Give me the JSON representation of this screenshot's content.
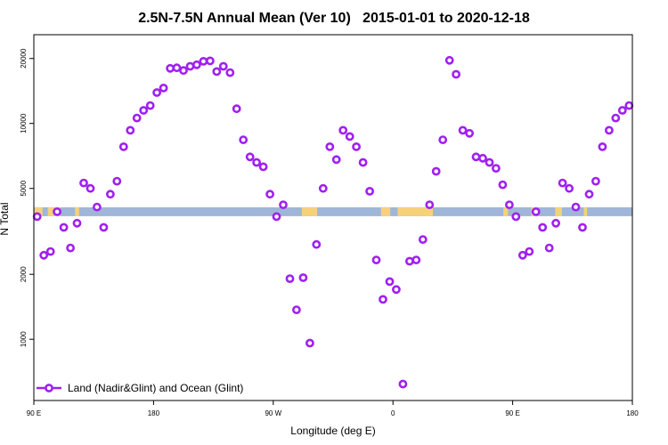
{
  "chart_data": {
    "type": "scatter",
    "title": "2.5N-7.5N Annual Mean (Ver 10)   2015-01-01 to 2020-12-18",
    "xlabel": "Longitude (deg E)",
    "ylabel": "N Total",
    "yscale": "log",
    "ylim": [
      600,
      23000
    ],
    "xlim": [
      0,
      90
    ],
    "x_ticks": [
      {
        "value": 0,
        "label": "90 E"
      },
      {
        "value": 18,
        "label": "180"
      },
      {
        "value": 36,
        "label": "90 W"
      },
      {
        "value": 54,
        "label": "0"
      },
      {
        "value": 72,
        "label": "90 E"
      },
      {
        "value": 90,
        "label": "180"
      }
    ],
    "y_ticks": [
      {
        "value": 1000,
        "label": "1000"
      },
      {
        "value": 2000,
        "label": "2000"
      },
      {
        "value": 5000,
        "label": "5000"
      },
      {
        "value": 10000,
        "label": "10000"
      },
      {
        "value": 20000,
        "label": "20000"
      }
    ],
    "legend": {
      "label": "Land (Nadir&Glint) and Ocean (Glint)",
      "position": "bottom-left"
    },
    "series_color": "#a020f0",
    "band": {
      "value": 3900,
      "ocean_color": "#9fb6d8",
      "land_color": "#f5d27a"
    },
    "land_segments": [
      [
        0.1,
        1.3
      ],
      [
        2.1,
        4.0
      ],
      [
        6.2,
        6.8
      ],
      [
        40.3,
        42.6
      ],
      [
        52.2,
        53.6
      ],
      [
        54.7,
        60.0
      ],
      [
        70.6,
        71.3
      ],
      [
        74.8,
        75.4
      ],
      [
        78.4,
        79.4
      ],
      [
        82.7,
        83.2
      ]
    ],
    "series": [
      {
        "name": "Land (Nadir&Glint) and Ocean (Glint)",
        "x": [
          0.5,
          1.5,
          2.5,
          3.5,
          4.5,
          5.5,
          6.5,
          7.5,
          8.5,
          9.5,
          10.5,
          11.5,
          12.5,
          13.5,
          14.5,
          15.5,
          16.5,
          17.5,
          18.5,
          19.5,
          20.5,
          21.5,
          22.5,
          23.5,
          24.5,
          25.5,
          26.5,
          27.5,
          28.5,
          29.5,
          30.5,
          31.5,
          32.5,
          33.5,
          34.5,
          35.5,
          36.5,
          37.5,
          38.5,
          39.5,
          40.5,
          41.5,
          42.5,
          43.5,
          44.5,
          45.5,
          46.5,
          47.5,
          48.5,
          49.5,
          50.5,
          51.5,
          52.5,
          53.5,
          54.5,
          55.5,
          56.5,
          57.5,
          58.5,
          59.5,
          60.5,
          61.5,
          62.5,
          63.5,
          64.5,
          65.5,
          66.5,
          67.5,
          68.5,
          69.5,
          70.5,
          71.5,
          72.5,
          73.5,
          74.5,
          75.5,
          76.5,
          77.5,
          78.5,
          79.5,
          80.5,
          81.5,
          82.5,
          83.5,
          84.5,
          85.5,
          86.5,
          87.5,
          88.5,
          89.5
        ],
        "y": [
          3700,
          2450,
          2550,
          3900,
          3300,
          2650,
          3450,
          5300,
          5000,
          4100,
          3300,
          4700,
          5400,
          7800,
          9300,
          10600,
          11500,
          12100,
          13900,
          14600,
          18000,
          18100,
          17600,
          18400,
          18700,
          19400,
          19500,
          17400,
          18400,
          17200,
          11700,
          8400,
          7000,
          6600,
          6300,
          4700,
          3700,
          4200,
          1910,
          1370,
          1930,
          960,
          2750,
          5000,
          7800,
          6800,
          9300,
          8700,
          7800,
          6600,
          4850,
          2330,
          1530,
          1850,
          1700,
          620,
          2300,
          2330,
          2900,
          4200,
          6000,
          8400,
          19600,
          16900,
          9300,
          9000,
          7000,
          6900,
          6600,
          6200,
          5200,
          4200,
          3700,
          2450,
          2550,
          3900,
          3300,
          2650,
          3450,
          5300,
          5000,
          4100,
          3300,
          4700,
          5400,
          7800,
          9300,
          10600,
          11500,
          12100
        ]
      }
    ]
  }
}
